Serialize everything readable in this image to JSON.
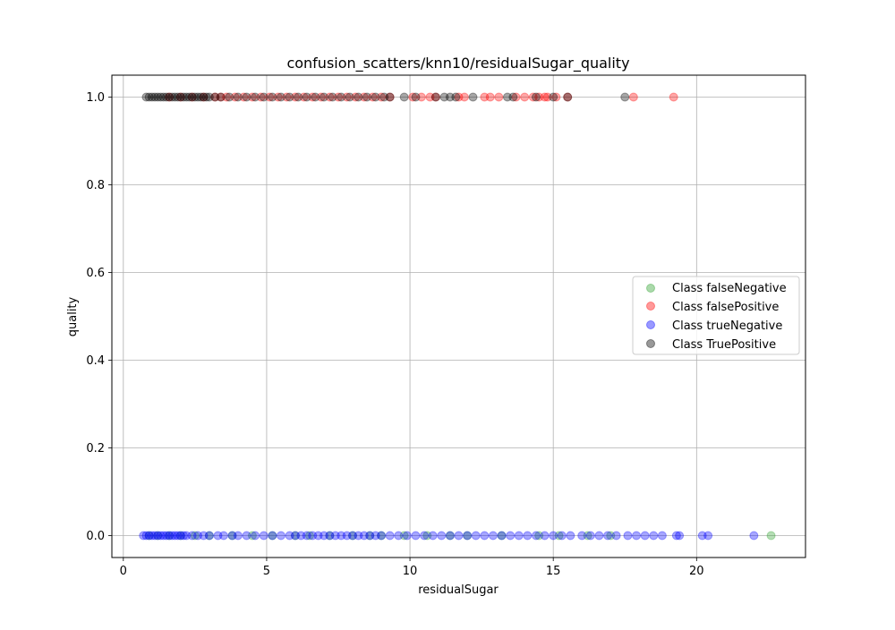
{
  "chart_data": {
    "type": "scatter",
    "title": "confusion_scatters/knn10/residualSugar_quality",
    "xlabel": "residualSugar",
    "ylabel": "quality",
    "xlim": [
      -0.4,
      23.8
    ],
    "ylim": [
      -0.05,
      1.05
    ],
    "xticks": [
      0,
      5,
      10,
      15,
      20
    ],
    "yticks": [
      0.0,
      0.2,
      0.4,
      0.6,
      0.8,
      1.0
    ],
    "xtick_labels": [
      "0",
      "5",
      "10",
      "15",
      "20"
    ],
    "ytick_labels": [
      "0.0",
      "0.2",
      "0.4",
      "0.6",
      "0.8",
      "1.0"
    ],
    "grid": true,
    "legend_position": "center-right",
    "series": [
      {
        "name": "Class falseNegative",
        "color": "#2ca02c",
        "y": 0,
        "x": [
          0.9,
          1.2,
          1.6,
          2.0,
          2.5,
          3.0,
          3.8,
          4.5,
          5.2,
          6.0,
          6.5,
          7.2,
          8.0,
          8.6,
          9.0,
          9.8,
          10.6,
          11.4,
          12.0,
          13.2,
          14.5,
          15.2,
          16.2,
          17.0,
          22.6
        ]
      },
      {
        "name": "Class falsePositive",
        "color": "#ff0000",
        "y": 1,
        "x": [
          1.6,
          2.0,
          2.4,
          2.8,
          3.2,
          3.4,
          3.6,
          3.9,
          4.2,
          4.5,
          4.8,
          5.1,
          5.4,
          5.7,
          6.0,
          6.3,
          6.6,
          6.9,
          7.2,
          7.5,
          7.8,
          8.1,
          8.4,
          8.7,
          9.0,
          9.3,
          10.1,
          10.4,
          10.7,
          10.9,
          11.7,
          11.9,
          12.6,
          12.8,
          13.1,
          13.7,
          14.0,
          14.3,
          14.5,
          14.7,
          14.8,
          15.1,
          15.5,
          17.8,
          19.2
        ]
      },
      {
        "name": "Class trueNegative",
        "color": "#0000ff",
        "y": 0,
        "x": [
          0.7,
          0.8,
          0.9,
          1.0,
          1.1,
          1.2,
          1.3,
          1.4,
          1.5,
          1.6,
          1.7,
          1.8,
          1.9,
          2.0,
          2.1,
          2.2,
          2.4,
          2.6,
          2.8,
          3.0,
          3.3,
          3.5,
          3.8,
          4.0,
          4.3,
          4.6,
          4.9,
          5.2,
          5.5,
          5.8,
          6.0,
          6.2,
          6.4,
          6.6,
          6.8,
          7.0,
          7.2,
          7.4,
          7.6,
          7.8,
          8.0,
          8.2,
          8.4,
          8.6,
          8.8,
          9.0,
          9.3,
          9.6,
          9.9,
          10.2,
          10.5,
          10.8,
          11.1,
          11.4,
          11.7,
          12.0,
          12.3,
          12.6,
          12.9,
          13.2,
          13.5,
          13.8,
          14.1,
          14.4,
          14.7,
          15.0,
          15.3,
          15.6,
          16.0,
          16.3,
          16.6,
          16.9,
          17.2,
          17.6,
          17.9,
          18.2,
          18.5,
          18.8,
          19.3,
          19.4,
          20.2,
          20.4,
          22.0
        ]
      },
      {
        "name": "Class TruePositive",
        "color": "#000000",
        "y": 1,
        "x": [
          0.8,
          0.9,
          1.0,
          1.1,
          1.2,
          1.3,
          1.4,
          1.5,
          1.6,
          1.7,
          1.8,
          1.9,
          2.0,
          2.1,
          2.2,
          2.3,
          2.4,
          2.5,
          2.6,
          2.7,
          2.8,
          2.9,
          3.0,
          3.2,
          3.4,
          3.7,
          4.0,
          4.3,
          4.6,
          4.9,
          5.2,
          5.5,
          5.8,
          6.1,
          6.4,
          6.7,
          7.0,
          7.3,
          7.6,
          7.9,
          8.2,
          8.5,
          8.8,
          9.1,
          9.3,
          9.8,
          10.2,
          10.9,
          11.2,
          11.4,
          11.6,
          12.2,
          13.4,
          13.6,
          14.4,
          15.0,
          15.5,
          17.5
        ]
      }
    ]
  }
}
